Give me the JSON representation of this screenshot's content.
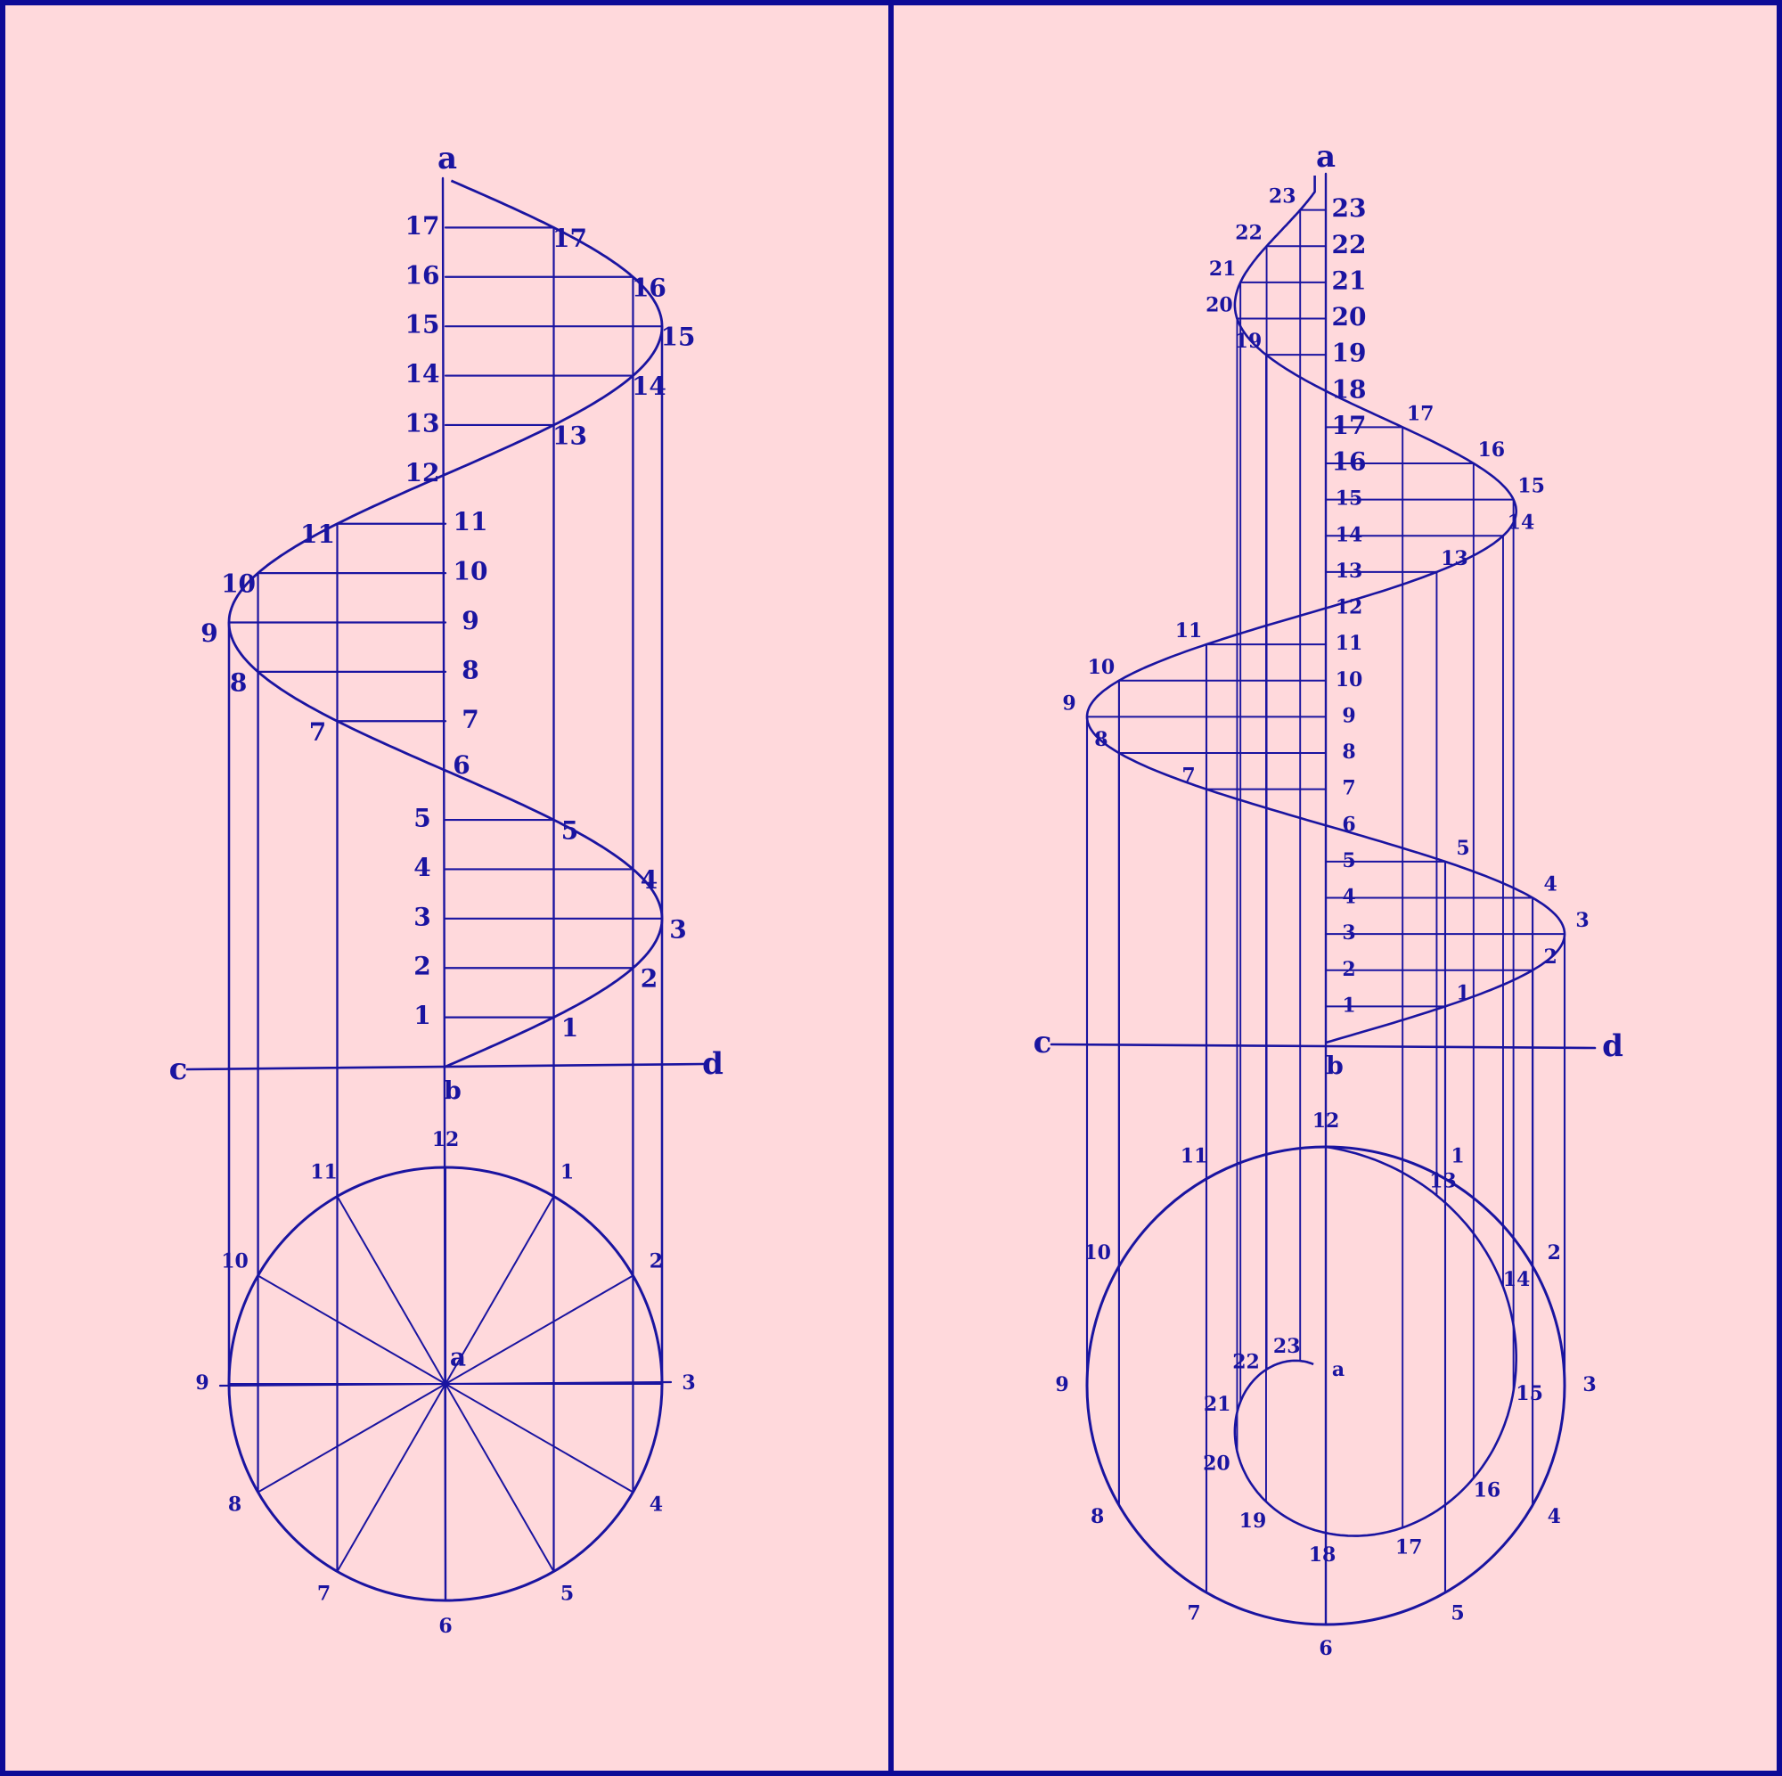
{
  "colors": {
    "background": "#ffd9dc",
    "ink": "#1a14a0",
    "border": "#0d0a96"
  },
  "left_figure": {
    "top_letter": "a",
    "center_letter": "a",
    "baseline_letters": {
      "left": "c",
      "center": "b",
      "right": "d"
    },
    "axis_numbers": [
      "1",
      "2",
      "3",
      "4",
      "5",
      "6",
      "7",
      "8",
      "9",
      "10",
      "11",
      "12",
      "13",
      "14",
      "15",
      "16",
      "17"
    ],
    "curve_numbers": [
      "1",
      "2",
      "3",
      "4",
      "5",
      "6",
      "7",
      "8",
      "9",
      "10",
      "11",
      "12",
      "13",
      "14",
      "15",
      "16",
      "17"
    ],
    "circle_numbers": [
      "1",
      "2",
      "3",
      "4",
      "5",
      "6",
      "7",
      "8",
      "9",
      "10",
      "11",
      "12"
    ]
  },
  "right_figure": {
    "top_letter": "a",
    "center_letter": "a",
    "baseline_letters": {
      "left": "c",
      "center": "b",
      "right": "d"
    },
    "axis_numbers": [
      "1",
      "2",
      "3",
      "4",
      "5",
      "6",
      "7",
      "8",
      "9",
      "10",
      "11",
      "12",
      "13",
      "14",
      "15",
      "16",
      "17",
      "18",
      "19",
      "20",
      "21",
      "22",
      "23"
    ],
    "curve_numbers": [
      "1",
      "2",
      "3",
      "4",
      "5",
      "6",
      "7",
      "8",
      "9",
      "10",
      "11",
      "12",
      "13",
      "14",
      "15",
      "16",
      "17",
      "18",
      "19",
      "20",
      "21",
      "22",
      "23"
    ],
    "outer_circle_numbers": [
      "1",
      "2",
      "3",
      "4",
      "5",
      "6",
      "7",
      "8",
      "9",
      "10",
      "11",
      "12"
    ],
    "spiral_numbers": [
      "13",
      "14",
      "15",
      "16",
      "17",
      "18",
      "19",
      "20",
      "21",
      "22",
      "23"
    ]
  }
}
